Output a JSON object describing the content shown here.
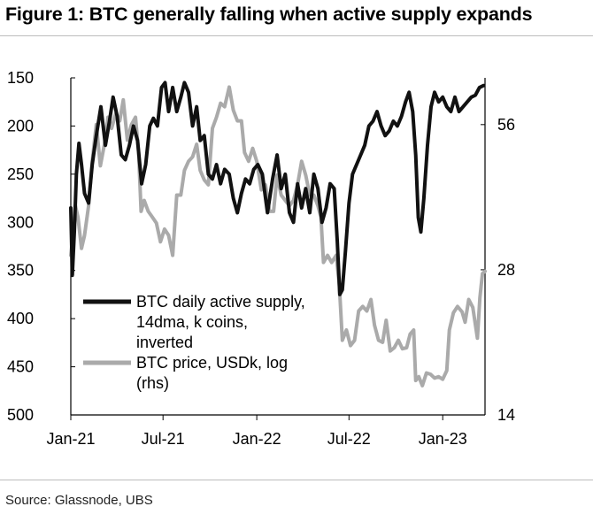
{
  "figure": {
    "title": "Figure 1: BTC generally falling when active supply expands",
    "source": "Source: Glassnode, UBS"
  },
  "colors": {
    "supply": "#111111",
    "price": "#aaaaaa",
    "axis": "#000000"
  },
  "chart_data": {
    "type": "line",
    "title": "Figure 1: BTC generally falling when active supply expands",
    "x_ticks": [
      "Jan-21",
      "Jul-21",
      "Jan-22",
      "Jul-22",
      "Jan-23"
    ],
    "x_range": [
      "2021-01-01",
      "2023-03-25"
    ],
    "y_left": {
      "ticks": [
        150,
        200,
        250,
        300,
        350,
        400,
        450,
        500
      ],
      "range": [
        150,
        500
      ],
      "inverted": true
    },
    "y_right": {
      "ticks": [
        56,
        28,
        14
      ],
      "range": [
        14,
        70
      ],
      "scale": "log"
    },
    "grid": false,
    "legend": {
      "placement": "bottom-left"
    },
    "series": [
      {
        "name_lines": [
          "BTC daily active supply,",
          "14dma, k coins,",
          "inverted"
        ],
        "axis": "left",
        "points": [
          [
            "2021-01-01",
            285
          ],
          [
            "2021-01-04",
            355
          ],
          [
            "2021-01-08",
            310
          ],
          [
            "2021-01-12",
            250
          ],
          [
            "2021-01-17",
            218
          ],
          [
            "2021-01-22",
            240
          ],
          [
            "2021-01-28",
            270
          ],
          [
            "2021-02-05",
            280
          ],
          [
            "2021-02-12",
            240
          ],
          [
            "2021-02-20",
            210
          ],
          [
            "2021-03-01",
            180
          ],
          [
            "2021-03-10",
            220
          ],
          [
            "2021-03-18",
            195
          ],
          [
            "2021-03-25",
            170
          ],
          [
            "2021-04-02",
            190
          ],
          [
            "2021-04-10",
            230
          ],
          [
            "2021-04-18",
            235
          ],
          [
            "2021-04-26",
            220
          ],
          [
            "2021-05-04",
            200
          ],
          [
            "2021-05-12",
            215
          ],
          [
            "2021-05-20",
            260
          ],
          [
            "2021-05-28",
            240
          ],
          [
            "2021-06-05",
            200
          ],
          [
            "2021-06-12",
            192
          ],
          [
            "2021-06-20",
            200
          ],
          [
            "2021-06-28",
            160
          ],
          [
            "2021-07-05",
            155
          ],
          [
            "2021-07-12",
            185
          ],
          [
            "2021-07-20",
            160
          ],
          [
            "2021-07-28",
            185
          ],
          [
            "2021-08-05",
            170
          ],
          [
            "2021-08-12",
            155
          ],
          [
            "2021-08-20",
            165
          ],
          [
            "2021-08-28",
            200
          ],
          [
            "2021-09-05",
            180
          ],
          [
            "2021-09-12",
            215
          ],
          [
            "2021-09-20",
            210
          ],
          [
            "2021-09-28",
            250
          ],
          [
            "2021-10-06",
            255
          ],
          [
            "2021-10-14",
            240
          ],
          [
            "2021-10-22",
            260
          ],
          [
            "2021-10-30",
            245
          ],
          [
            "2021-11-08",
            250
          ],
          [
            "2021-11-16",
            275
          ],
          [
            "2021-11-24",
            290
          ],
          [
            "2021-12-02",
            270
          ],
          [
            "2021-12-10",
            255
          ],
          [
            "2021-12-18",
            260
          ],
          [
            "2021-12-26",
            245
          ],
          [
            "2022-01-03",
            240
          ],
          [
            "2022-01-12",
            250
          ],
          [
            "2022-01-22",
            290
          ],
          [
            "2022-02-01",
            255
          ],
          [
            "2022-02-10",
            230
          ],
          [
            "2022-02-18",
            265
          ],
          [
            "2022-02-26",
            250
          ],
          [
            "2022-03-06",
            290
          ],
          [
            "2022-03-14",
            300
          ],
          [
            "2022-03-22",
            260
          ],
          [
            "2022-03-30",
            285
          ],
          [
            "2022-04-07",
            265
          ],
          [
            "2022-04-15",
            290
          ],
          [
            "2022-04-23",
            250
          ],
          [
            "2022-05-01",
            265
          ],
          [
            "2022-05-09",
            300
          ],
          [
            "2022-05-17",
            285
          ],
          [
            "2022-05-25",
            260
          ],
          [
            "2022-06-02",
            265
          ],
          [
            "2022-06-08",
            320
          ],
          [
            "2022-06-13",
            375
          ],
          [
            "2022-06-18",
            370
          ],
          [
            "2022-06-24",
            330
          ],
          [
            "2022-07-01",
            280
          ],
          [
            "2022-07-08",
            250
          ],
          [
            "2022-07-16",
            240
          ],
          [
            "2022-07-24",
            230
          ],
          [
            "2022-08-01",
            220
          ],
          [
            "2022-08-09",
            200
          ],
          [
            "2022-08-17",
            195
          ],
          [
            "2022-08-25",
            185
          ],
          [
            "2022-09-02",
            200
          ],
          [
            "2022-09-10",
            210
          ],
          [
            "2022-09-18",
            205
          ],
          [
            "2022-09-26",
            195
          ],
          [
            "2022-10-04",
            200
          ],
          [
            "2022-10-12",
            190
          ],
          [
            "2022-10-20",
            175
          ],
          [
            "2022-10-27",
            165
          ],
          [
            "2022-11-03",
            185
          ],
          [
            "2022-11-09",
            230
          ],
          [
            "2022-11-14",
            295
          ],
          [
            "2022-11-19",
            310
          ],
          [
            "2022-11-25",
            275
          ],
          [
            "2022-12-02",
            220
          ],
          [
            "2022-12-09",
            180
          ],
          [
            "2022-12-16",
            165
          ],
          [
            "2022-12-24",
            175
          ],
          [
            "2023-01-01",
            170
          ],
          [
            "2023-01-09",
            180
          ],
          [
            "2023-01-17",
            185
          ],
          [
            "2023-01-25",
            170
          ],
          [
            "2023-02-02",
            185
          ],
          [
            "2023-02-10",
            180
          ],
          [
            "2023-02-18",
            175
          ],
          [
            "2023-02-26",
            170
          ],
          [
            "2023-03-06",
            168
          ],
          [
            "2023-03-14",
            160
          ],
          [
            "2023-03-22",
            158
          ]
        ]
      },
      {
        "name_lines": [
          "BTC price, USDk, log",
          "(rhs)"
        ],
        "axis": "right",
        "points": [
          [
            "2021-01-01",
            30
          ],
          [
            "2021-01-05",
            33
          ],
          [
            "2021-01-10",
            38
          ],
          [
            "2021-01-15",
            36
          ],
          [
            "2021-01-22",
            31
          ],
          [
            "2021-01-28",
            33
          ],
          [
            "2021-02-05",
            38
          ],
          [
            "2021-02-12",
            47
          ],
          [
            "2021-02-20",
            56
          ],
          [
            "2021-02-28",
            46
          ],
          [
            "2021-03-08",
            51
          ],
          [
            "2021-03-15",
            58
          ],
          [
            "2021-03-22",
            55
          ],
          [
            "2021-03-30",
            59
          ],
          [
            "2021-04-07",
            57
          ],
          [
            "2021-04-14",
            63
          ],
          [
            "2021-04-22",
            52
          ],
          [
            "2021-04-30",
            56
          ],
          [
            "2021-05-08",
            58
          ],
          [
            "2021-05-14",
            49
          ],
          [
            "2021-05-19",
            37
          ],
          [
            "2021-05-25",
            39
          ],
          [
            "2021-06-02",
            37
          ],
          [
            "2021-06-10",
            36
          ],
          [
            "2021-06-18",
            35
          ],
          [
            "2021-06-26",
            32
          ],
          [
            "2021-07-04",
            34
          ],
          [
            "2021-07-12",
            33
          ],
          [
            "2021-07-20",
            30
          ],
          [
            "2021-07-28",
            40
          ],
          [
            "2021-08-05",
            40
          ],
          [
            "2021-08-12",
            45
          ],
          [
            "2021-08-20",
            47
          ],
          [
            "2021-08-28",
            48
          ],
          [
            "2021-09-05",
            51
          ],
          [
            "2021-09-12",
            45
          ],
          [
            "2021-09-20",
            43
          ],
          [
            "2021-09-28",
            42
          ],
          [
            "2021-10-06",
            55
          ],
          [
            "2021-10-14",
            58
          ],
          [
            "2021-10-22",
            62
          ],
          [
            "2021-10-30",
            61
          ],
          [
            "2021-11-08",
            67
          ],
          [
            "2021-11-16",
            60
          ],
          [
            "2021-11-24",
            57
          ],
          [
            "2021-12-02",
            57
          ],
          [
            "2021-12-08",
            49
          ],
          [
            "2021-12-16",
            47
          ],
          [
            "2021-12-24",
            50
          ],
          [
            "2022-01-01",
            47
          ],
          [
            "2022-01-10",
            41
          ],
          [
            "2022-01-18",
            42
          ],
          [
            "2022-01-26",
            37
          ],
          [
            "2022-02-03",
            37
          ],
          [
            "2022-02-10",
            44
          ],
          [
            "2022-02-18",
            40
          ],
          [
            "2022-02-26",
            39
          ],
          [
            "2022-03-06",
            38
          ],
          [
            "2022-03-14",
            39
          ],
          [
            "2022-03-22",
            42
          ],
          [
            "2022-03-30",
            47
          ],
          [
            "2022-04-07",
            44
          ],
          [
            "2022-04-15",
            40
          ],
          [
            "2022-04-23",
            40
          ],
          [
            "2022-05-01",
            38
          ],
          [
            "2022-05-07",
            36
          ],
          [
            "2022-05-12",
            29
          ],
          [
            "2022-05-20",
            30
          ],
          [
            "2022-05-28",
            29
          ],
          [
            "2022-06-06",
            30
          ],
          [
            "2022-06-12",
            26
          ],
          [
            "2022-06-18",
            20
          ],
          [
            "2022-06-26",
            21
          ],
          [
            "2022-07-04",
            19.5
          ],
          [
            "2022-07-12",
            20
          ],
          [
            "2022-07-20",
            23
          ],
          [
            "2022-07-28",
            23.5
          ],
          [
            "2022-08-05",
            23
          ],
          [
            "2022-08-13",
            24.3
          ],
          [
            "2022-08-20",
            21.5
          ],
          [
            "2022-08-28",
            20
          ],
          [
            "2022-09-05",
            19.8
          ],
          [
            "2022-09-12",
            22
          ],
          [
            "2022-09-20",
            19
          ],
          [
            "2022-09-28",
            19.3
          ],
          [
            "2022-10-06",
            20
          ],
          [
            "2022-10-14",
            19.2
          ],
          [
            "2022-10-22",
            19.3
          ],
          [
            "2022-10-29",
            20.6
          ],
          [
            "2022-11-05",
            21
          ],
          [
            "2022-11-09",
            16.5
          ],
          [
            "2022-11-15",
            16.8
          ],
          [
            "2022-11-22",
            16.1
          ],
          [
            "2022-11-30",
            17.1
          ],
          [
            "2022-12-08",
            17
          ],
          [
            "2022-12-16",
            16.7
          ],
          [
            "2022-12-24",
            16.8
          ],
          [
            "2023-01-01",
            16.6
          ],
          [
            "2023-01-09",
            17.3
          ],
          [
            "2023-01-14",
            21
          ],
          [
            "2023-01-22",
            22.8
          ],
          [
            "2023-01-30",
            23.5
          ],
          [
            "2023-02-08",
            22.9
          ],
          [
            "2023-02-14",
            21.8
          ],
          [
            "2023-02-21",
            24.3
          ],
          [
            "2023-03-01",
            23.4
          ],
          [
            "2023-03-10",
            20.2
          ],
          [
            "2023-03-15",
            24.5
          ],
          [
            "2023-03-20",
            27.5
          ],
          [
            "2023-03-25",
            27.8
          ]
        ]
      }
    ]
  }
}
